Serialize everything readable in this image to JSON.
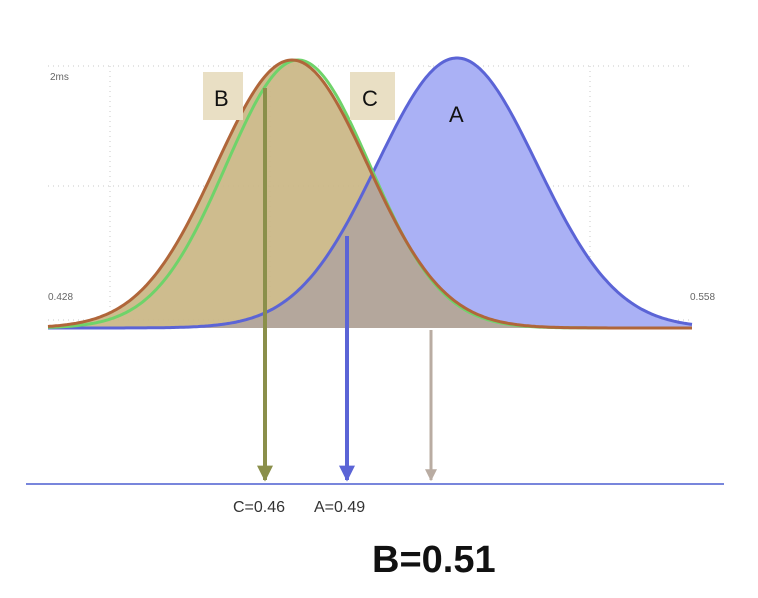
{
  "axis": {
    "top_label": "2ms",
    "left_label": "0.428",
    "right_label": "0.558",
    "baseline_color": "#4b5fd0"
  },
  "curves": [
    {
      "id": "B",
      "label": "B",
      "stroke": "#b0663a",
      "fill": "#c9b582",
      "peak_note": "tan shaded"
    },
    {
      "id": "C",
      "label": "C",
      "stroke": "#6fd36a"
    },
    {
      "id": "A",
      "label": "A",
      "stroke": "#5b64d6",
      "fill": "#aab1f5"
    }
  ],
  "markers": [
    {
      "id": "C",
      "label": "C=0.46",
      "color": "#8a8f4a"
    },
    {
      "id": "A",
      "label": "A=0.49",
      "color": "#5b64d6"
    },
    {
      "id": "B",
      "label": "B=0.51",
      "color": "#b9aca2"
    }
  ],
  "overlap_fill": "#b4a79c"
}
